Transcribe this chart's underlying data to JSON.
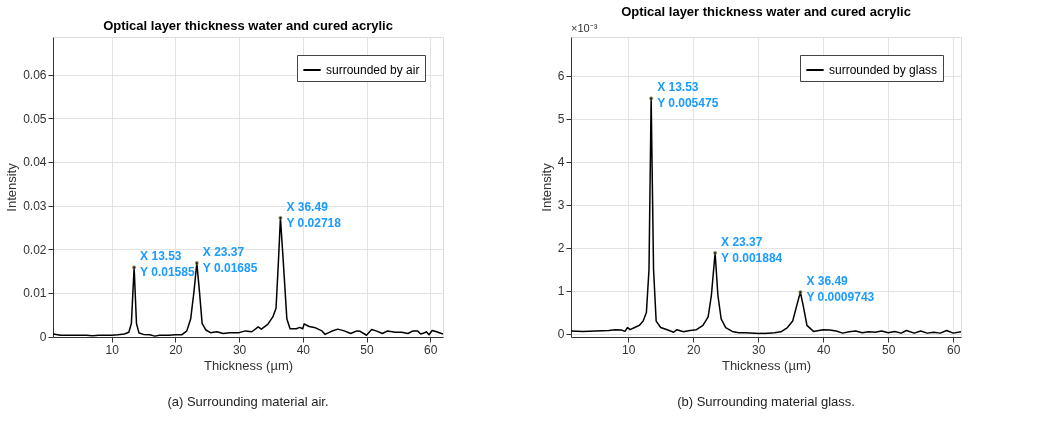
{
  "chart_data": [
    {
      "type": "line",
      "title": "Optical layer thickness water and cured acrylic",
      "xlabel": "Thickness (µm)",
      "ylabel": "Intensity",
      "xlim": [
        0.8,
        62
      ],
      "ylim": [
        -0.0001,
        0.0686
      ],
      "xticks": [
        10,
        20,
        30,
        40,
        50,
        60
      ],
      "yticks": [
        0,
        0.01,
        0.02,
        0.03,
        0.04,
        0.05,
        0.06
      ],
      "grid": true,
      "legend": "top right",
      "series": [
        {
          "name": "surrounded by air",
          "color": "#000000",
          "x": [
            0.8,
            2,
            4,
            6,
            7,
            8,
            10,
            11,
            12,
            12.7,
            13.1,
            13.53,
            13.9,
            14.3,
            15,
            16,
            16.8,
            17.5,
            19,
            20,
            21,
            21.8,
            22.4,
            22.9,
            23.37,
            23.8,
            24.2,
            24.8,
            25.5,
            26.5,
            27.5,
            28.5,
            30,
            31,
            32,
            33,
            33.5,
            34.5,
            35.3,
            35.8,
            36.2,
            36.49,
            36.9,
            37.5,
            38,
            39,
            39.5,
            40,
            40.2,
            41,
            42,
            43,
            43.5,
            44.5,
            45.5,
            46.5,
            47.5,
            48.5,
            49,
            50,
            50.8,
            51.5,
            52.5,
            53.3,
            54.5,
            55.5,
            56.5,
            57.3,
            58,
            58.5,
            59,
            59.4,
            59.8,
            60.3,
            61,
            62
          ],
          "values": [
            0.0006,
            0.0003,
            0.0003,
            0.0003,
            0.0002,
            0.0003,
            0.0003,
            0.0004,
            0.0006,
            0.001,
            0.003,
            0.01585,
            0.003,
            0.0008,
            0.0005,
            0.0004,
            0.0001,
            0.0003,
            0.0003,
            0.0004,
            0.0004,
            0.0013,
            0.004,
            0.01,
            0.01685,
            0.01,
            0.003,
            0.0015,
            0.0009,
            0.0011,
            0.0007,
            0.0009,
            0.0009,
            0.0013,
            0.0011,
            0.0022,
            0.0017,
            0.0028,
            0.0045,
            0.0065,
            0.018,
            0.02718,
            0.018,
            0.004,
            0.0018,
            0.0018,
            0.0021,
            0.0018,
            0.0029,
            0.0023,
            0.002,
            0.0013,
            0.0005,
            0.0012,
            0.0017,
            0.0013,
            0.0007,
            0.0013,
            0.0012,
            0.0003,
            0.0016,
            0.0013,
            0.0007,
            0.0013,
            0.001,
            0.001,
            0.0007,
            0.0013,
            0.0013,
            0.0006,
            0.0008,
            0.0011,
            0.0004,
            0.0014,
            0.0011,
            0.0006
          ]
        }
      ],
      "annotations": [
        {
          "text": "X 13.53\nY 0.01585",
          "x": 13.53,
          "y": 0.01585
        },
        {
          "text": "X 23.37\nY 0.01685",
          "x": 23.37,
          "y": 0.01685
        },
        {
          "text": "X 36.49\nY 0.02718",
          "x": 36.49,
          "y": 0.02718
        },
        "(a) Surrounding material air."
      ]
    },
    {
      "type": "line",
      "title": "Optical layer thickness water and cured acrylic",
      "xlabel": "Thickness (µm)",
      "ylabel": "Intensity",
      "xlim": [
        1.2,
        61.2
      ],
      "ylim": [
        -0.07,
        6.9
      ],
      "xticks": [
        10,
        20,
        30,
        40,
        50,
        60
      ],
      "yticks": [
        0,
        1,
        2,
        3,
        4,
        5,
        6
      ],
      "grid": true,
      "legend": "top right",
      "series": [
        {
          "name": "surrounded by glass",
          "color": "#000000",
          "x": [
            1.2,
            3,
            5,
            7,
            8,
            9,
            9.5,
            9.9,
            10.3,
            11,
            11.7,
            12.3,
            12.8,
            13.2,
            13.53,
            13.9,
            14.3,
            15,
            16,
            17,
            17.5,
            18.5,
            19.5,
            20.5,
            21.5,
            22.3,
            22.8,
            23.37,
            23.8,
            24.3,
            25,
            26,
            27,
            28,
            29.5,
            30,
            31.5,
            32.5,
            33.5,
            34.5,
            35.3,
            36,
            36.49,
            37,
            37.5,
            38.5,
            40,
            41,
            42,
            43,
            44,
            45,
            46,
            47,
            48,
            49,
            50,
            51,
            52,
            52.8,
            54,
            55,
            56,
            57,
            58,
            59,
            60,
            61.2
          ],
          "values": [
            0.07,
            0.06,
            0.07,
            0.08,
            0.1,
            0.09,
            0.06,
            0.15,
            0.1,
            0.15,
            0.2,
            0.3,
            0.5,
            1.5,
            5.475,
            1.5,
            0.3,
            0.15,
            0.1,
            0.04,
            0.1,
            0.05,
            0.08,
            0.1,
            0.2,
            0.4,
            0.9,
            1.884,
            0.9,
            0.35,
            0.15,
            0.06,
            0.03,
            0.03,
            0.02,
            0.01,
            0.02,
            0.03,
            0.05,
            0.15,
            0.3,
            0.7,
            0.9743,
            0.6,
            0.2,
            0.06,
            0.1,
            0.09,
            0.07,
            0.02,
            0.05,
            0.07,
            0.03,
            0.05,
            0.04,
            0.07,
            0.03,
            0.06,
            0.02,
            0.08,
            0.02,
            0.07,
            0.02,
            0.04,
            0.02,
            0.08,
            0.02,
            0.05
          ]
        }
      ],
      "annotations": [
        "×10⁻³",
        {
          "text": "X 13.53\nY 0.005475",
          "x": 13.53,
          "y": 5.475
        },
        {
          "text": "X 23.37\nY 0.001884",
          "x": 23.37,
          "y": 1.884
        },
        {
          "text": "X 36.49\nY 0.0009743",
          "x": 36.49,
          "y": 0.9743
        },
        "(b) Surrounding material glass."
      ]
    }
  ]
}
